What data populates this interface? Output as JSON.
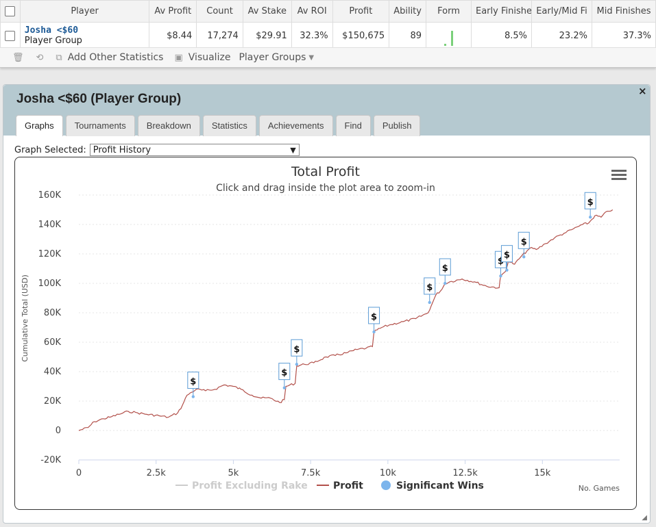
{
  "table": {
    "headers": [
      "Player",
      "Av Profit",
      "Count",
      "Av Stake",
      "Av ROI",
      "Profit",
      "Ability",
      "Form",
      "Early Finishe",
      "Early/Mid Fi",
      "Mid Finishes"
    ],
    "row": {
      "player_name": "Josha  <$60",
      "player_type": "Player Group",
      "av_profit": "$8.44",
      "count": "17,274",
      "av_stake": "$29.91",
      "av_roi": "32.3%",
      "profit": "$150,675",
      "ability": "89",
      "early_finishes": "8.5%",
      "early_mid_finishes": "23.2%",
      "mid_finishes": "37.3%"
    }
  },
  "toolbar": {
    "add_stats": "Add Other Statistics",
    "visualize": "Visualize",
    "player_groups": "Player Groups"
  },
  "panel": {
    "title": "Josha <$60 (Player Group)",
    "close_glyph": "×",
    "tabs": [
      "Graphs",
      "Tournaments",
      "Breakdown",
      "Statistics",
      "Achievements",
      "Find",
      "Publish"
    ],
    "active_tab": "Graphs",
    "graph_selected_label": "Graph Selected:",
    "graph_selected_value": "Profit History"
  },
  "colors": {
    "profit_line": "#b2504a",
    "marker_border": "#5b9bd5",
    "panel_header": "#b5c9d0"
  },
  "chart_data": {
    "type": "line",
    "title": "Total Profit",
    "subtitle": "Click and drag inside the plot area to zoom-in",
    "xlabel": "No. Games",
    "ylabel": "Cumulative Total (USD)",
    "xlim": [
      0,
      17500
    ],
    "ylim": [
      -20000,
      160000
    ],
    "x_ticks": [
      "0",
      "2.5k",
      "5k",
      "7.5k",
      "10k",
      "12.5k",
      "15k"
    ],
    "y_ticks": [
      "-20K",
      "0",
      "20K",
      "40K",
      "60K",
      "80K",
      "100K",
      "120K",
      "140K",
      "160K"
    ],
    "legend": [
      {
        "name": "Profit Excluding Rake",
        "color": "#cccccc",
        "type": "line"
      },
      {
        "name": "Profit",
        "color": "#b2504a",
        "type": "line"
      },
      {
        "name": "Significant Wins",
        "color": "#7cb5ec",
        "type": "marker"
      }
    ],
    "series": [
      {
        "name": "Profit",
        "x": [
          0,
          300,
          500,
          800,
          1000,
          1300,
          1600,
          1900,
          2200,
          2600,
          2900,
          3200,
          3350,
          3500,
          3650,
          3800,
          4100,
          4400,
          4700,
          5000,
          5250,
          5600,
          5900,
          6200,
          6500,
          6650,
          6700,
          7000,
          7050,
          7300,
          7600,
          8000,
          8300,
          8700,
          9000,
          9300,
          9500,
          9550,
          9800,
          10100,
          10500,
          10900,
          11300,
          11450,
          11550,
          11750,
          11850,
          12000,
          12400,
          12800,
          13200,
          13600,
          13650,
          13800,
          13900,
          14100,
          14300,
          14500,
          14600,
          14800,
          15100,
          15400,
          15700,
          16000,
          16300,
          16500,
          16700,
          16900,
          17100,
          17274
        ],
        "values": [
          0,
          2000,
          6000,
          8000,
          9000,
          11000,
          13000,
          12000,
          11000,
          10000,
          9000,
          12000,
          17000,
          24000,
          26000,
          28000,
          27000,
          28000,
          31000,
          30000,
          28000,
          24000,
          22000,
          22000,
          19000,
          21000,
          30000,
          32000,
          44000,
          45000,
          46000,
          50000,
          51000,
          53000,
          55000,
          56000,
          57000,
          67000,
          70000,
          72000,
          74000,
          76000,
          80000,
          87000,
          92000,
          96000,
          100000,
          101000,
          103000,
          101000,
          98000,
          97000,
          105000,
          108000,
          115000,
          113000,
          118000,
          122000,
          124000,
          123000,
          127000,
          131000,
          134000,
          137000,
          140000,
          141000,
          146000,
          145000,
          149000,
          150000
        ]
      }
    ],
    "significant_wins": [
      {
        "x": 3700,
        "y": 23000
      },
      {
        "x": 6650,
        "y": 29000
      },
      {
        "x": 7050,
        "y": 45000
      },
      {
        "x": 9550,
        "y": 67000
      },
      {
        "x": 11350,
        "y": 87000
      },
      {
        "x": 11850,
        "y": 100000
      },
      {
        "x": 13650,
        "y": 105000
      },
      {
        "x": 13850,
        "y": 109000
      },
      {
        "x": 14400,
        "y": 118000
      },
      {
        "x": 16550,
        "y": 145000
      }
    ],
    "marker_label": "$"
  }
}
